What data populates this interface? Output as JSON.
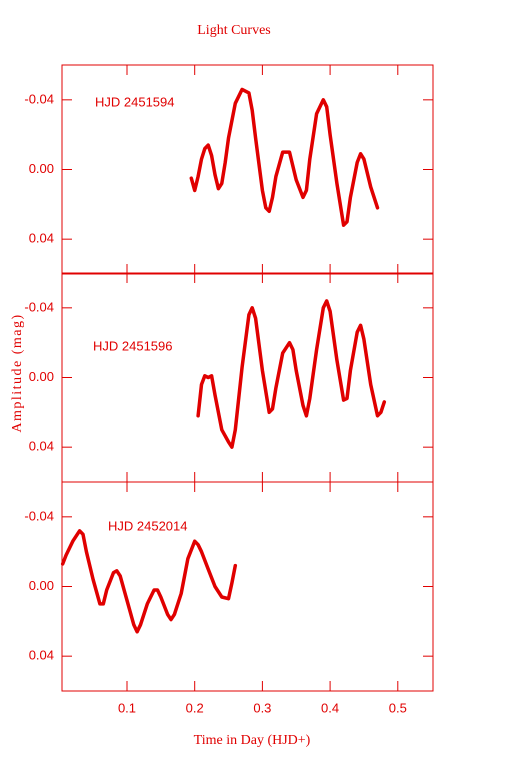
{
  "chart_data": [
    {
      "type": "line",
      "title": "Light Curves",
      "annotation": "HJD 2451594",
      "color": "#e00000",
      "x": [
        0.195,
        0.2,
        0.205,
        0.21,
        0.215,
        0.22,
        0.225,
        0.23,
        0.235,
        0.24,
        0.245,
        0.25,
        0.26,
        0.27,
        0.28,
        0.285,
        0.29,
        0.3,
        0.305,
        0.31,
        0.315,
        0.32,
        0.33,
        0.34,
        0.35,
        0.36,
        0.365,
        0.37,
        0.38,
        0.39,
        0.395,
        0.4,
        0.41,
        0.42,
        0.425,
        0.43,
        0.44,
        0.445,
        0.45,
        0.46,
        0.47
      ],
      "values": [
        0.005,
        0.012,
        0.004,
        -0.006,
        -0.012,
        -0.014,
        -0.008,
        0.003,
        0.011,
        0.008,
        -0.004,
        -0.018,
        -0.038,
        -0.046,
        -0.044,
        -0.034,
        -0.018,
        0.012,
        0.022,
        0.024,
        0.016,
        0.004,
        -0.01,
        -0.01,
        0.006,
        0.016,
        0.012,
        -0.006,
        -0.032,
        -0.04,
        -0.036,
        -0.02,
        0.008,
        0.032,
        0.03,
        0.016,
        -0.004,
        -0.009,
        -0.006,
        0.01,
        0.022
      ],
      "xlim": [
        0.004,
        0.552
      ],
      "ylim": [
        -0.06,
        0.06
      ],
      "y_inverted": true,
      "yticks": [
        -0.04,
        {
          "value": 0,
          "label": "0.00"
        },
        0.04
      ]
    },
    {
      "type": "line",
      "y_label": "Amplitude (mag)",
      "annotation": "HJD 2451596",
      "color": "#e00000",
      "x": [
        0.205,
        0.21,
        0.215,
        0.22,
        0.225,
        0.23,
        0.24,
        0.25,
        0.255,
        0.26,
        0.27,
        0.28,
        0.285,
        0.29,
        0.3,
        0.31,
        0.315,
        0.32,
        0.33,
        0.34,
        0.345,
        0.35,
        0.36,
        0.365,
        0.37,
        0.38,
        0.39,
        0.395,
        0.4,
        0.41,
        0.42,
        0.425,
        0.43,
        0.44,
        0.445,
        0.45,
        0.46,
        0.47,
        0.475,
        0.48
      ],
      "values": [
        0.022,
        0.004,
        -0.001,
        0.0,
        -0.001,
        0.01,
        0.03,
        0.037,
        0.04,
        0.03,
        -0.006,
        -0.036,
        -0.04,
        -0.034,
        -0.004,
        0.02,
        0.018,
        0.006,
        -0.014,
        -0.02,
        -0.016,
        -0.004,
        0.016,
        0.022,
        0.012,
        -0.016,
        -0.04,
        -0.044,
        -0.038,
        -0.01,
        0.013,
        0.012,
        -0.004,
        -0.026,
        -0.03,
        -0.022,
        0.004,
        0.022,
        0.02,
        0.014
      ],
      "xlim": [
        0.004,
        0.552
      ],
      "ylim": [
        -0.06,
        0.06
      ],
      "y_inverted": true,
      "yticks": [
        -0.04,
        {
          "value": 0,
          "label": "0.00"
        },
        0.04
      ]
    },
    {
      "type": "line",
      "x_label": "Time in Day (HJD+)",
      "annotation": "HJD 2452014",
      "color": "#e00000",
      "x": [
        0.005,
        0.01,
        0.02,
        0.03,
        0.035,
        0.04,
        0.05,
        0.06,
        0.065,
        0.07,
        0.08,
        0.085,
        0.09,
        0.1,
        0.11,
        0.115,
        0.12,
        0.13,
        0.14,
        0.145,
        0.15,
        0.16,
        0.165,
        0.17,
        0.18,
        0.19,
        0.2,
        0.205,
        0.21,
        0.22,
        0.23,
        0.24,
        0.25,
        0.255,
        0.26
      ],
      "values": [
        -0.013,
        -0.018,
        -0.026,
        -0.032,
        -0.03,
        -0.02,
        -0.004,
        0.01,
        0.01,
        0.002,
        -0.008,
        -0.009,
        -0.006,
        0.008,
        0.022,
        0.026,
        0.022,
        0.01,
        0.002,
        0.002,
        0.006,
        0.016,
        0.019,
        0.016,
        0.004,
        -0.016,
        -0.026,
        -0.024,
        -0.02,
        -0.01,
        0.0,
        0.006,
        0.007,
        -0.002,
        -0.012
      ],
      "xlim": [
        0.004,
        0.552
      ],
      "ylim": [
        -0.06,
        0.06
      ],
      "y_inverted": true,
      "yticks": [
        -0.04,
        {
          "value": 0,
          "label": "0.00"
        },
        0.04
      ],
      "xticks": [
        0.1,
        0.2,
        0.3,
        0.4,
        0.5
      ]
    }
  ]
}
